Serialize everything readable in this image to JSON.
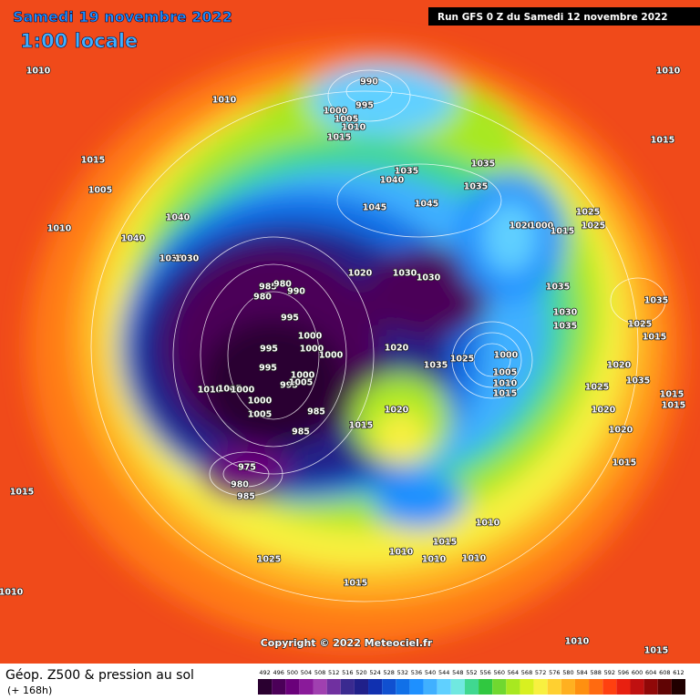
{
  "header": {
    "date": "Samedi 19 novembre 2022",
    "time": "1:00 locale",
    "run": "Run GFS 0 Z du Samedi 12 novembre 2022"
  },
  "footer": {
    "title": "Géop. Z500 & pression au sol",
    "lead": "(+ 168h)",
    "copyright": "Copyright © 2022 Meteociel.fr"
  },
  "pressure_labels": [
    "1010",
    "1010",
    "1010",
    "990",
    "995",
    "1000",
    "1005",
    "1010",
    "1015",
    "1015",
    "1015",
    "1035",
    "1035",
    "1035",
    "1040",
    "1005",
    "1045",
    "1045",
    "1040",
    "1025",
    "1025",
    "1020",
    "1000",
    "1015",
    "1010",
    "1040",
    "1035",
    "1030",
    "1030",
    "1030",
    "1020",
    "985",
    "980",
    "990",
    "980",
    "1035",
    "1035",
    "1030",
    "1035",
    "1025",
    "1015",
    "995",
    "1000",
    "995",
    "1000",
    "1000",
    "1020",
    "1000",
    "1025",
    "1035",
    "1005",
    "1020",
    "1035",
    "995",
    "1000",
    "995",
    "1005",
    "1010",
    "1005",
    "1000",
    "1010",
    "1015",
    "1025",
    "1015",
    "1015",
    "1000",
    "1005",
    "985",
    "1020",
    "1020",
    "1015",
    "985",
    "1020",
    "1015",
    "975",
    "980",
    "985",
    "1015",
    "1015",
    "1010",
    "1010",
    "1010",
    "1010",
    "1025",
    "1015",
    "1010",
    "1010",
    "1015"
  ],
  "scale": {
    "values": [
      492,
      496,
      500,
      504,
      508,
      512,
      516,
      520,
      524,
      528,
      532,
      536,
      540,
      544,
      548,
      552,
      556,
      560,
      564,
      568,
      572,
      576,
      580,
      584,
      588,
      592,
      596,
      600,
      604,
      608,
      612
    ],
    "colors": [
      "#2a0030",
      "#4b0058",
      "#6a007a",
      "#8a1a9a",
      "#a040b0",
      "#7030a0",
      "#3a2a90",
      "#20208a",
      "#1030b0",
      "#1050d0",
      "#1070e8",
      "#1e90ff",
      "#40b0ff",
      "#60d0ff",
      "#70e8e0",
      "#40d890",
      "#30c840",
      "#70d830",
      "#a8e820",
      "#d8f020",
      "#f8f040",
      "#ffd030",
      "#ffb020",
      "#ff9010",
      "#ff6a10",
      "#ff4010",
      "#e82010",
      "#c01010",
      "#900808",
      "#600404",
      "#200000"
    ]
  }
}
